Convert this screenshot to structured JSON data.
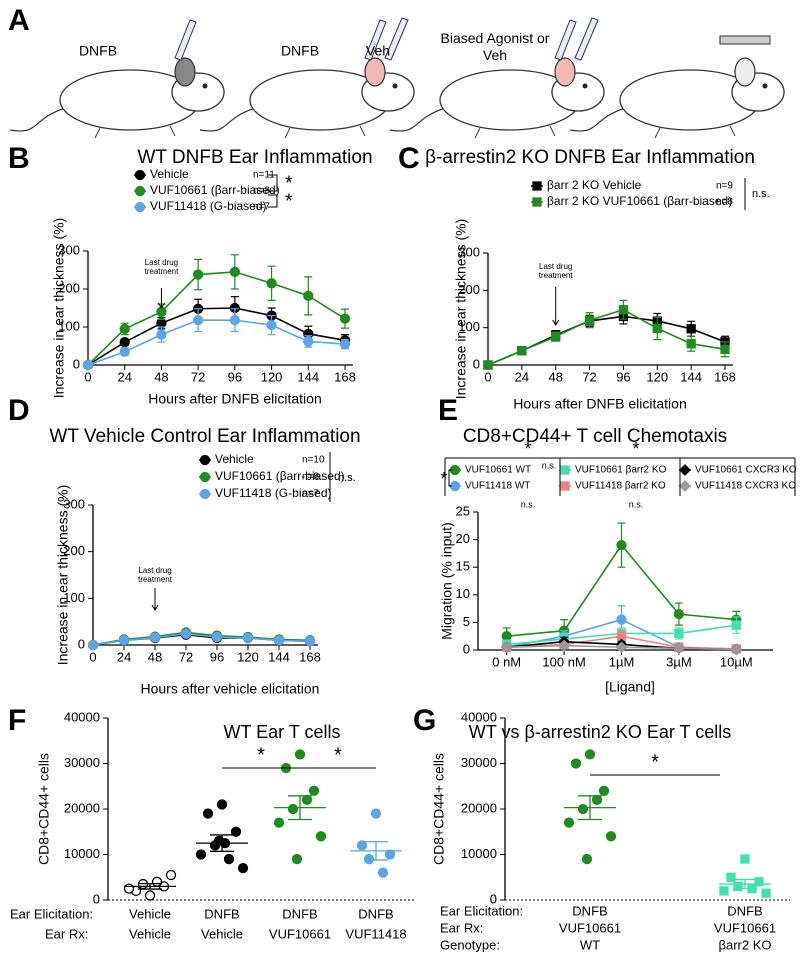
{
  "panel_a": {
    "panel": "A",
    "labels": [
      "DNFB",
      "DNFB",
      "Veh",
      "Biased Agonist or Veh"
    ]
  },
  "chart_data": [
    {
      "panel": "B",
      "type": "line",
      "title": "WT DNFB Ear Inflammation",
      "x_label": "Hours after DNFB elicitation",
      "y_label": "Increase in ear thickness (%)",
      "x": [
        0,
        24,
        48,
        72,
        96,
        120,
        144,
        168
      ],
      "xlim": [
        0,
        168
      ],
      "xticks": [
        0,
        24,
        48,
        72,
        96,
        120,
        144,
        168
      ],
      "ylim": [
        0,
        300
      ],
      "yticks": [
        0,
        100,
        200,
        300
      ],
      "annotation": "Last drug treatment",
      "significance": [
        "*",
        "*"
      ],
      "series": [
        {
          "name": "Vehicle",
          "n": "n=11",
          "color": "#000000",
          "marker": "circle",
          "values": [
            0,
            60,
            110,
            148,
            150,
            130,
            82,
            65
          ],
          "errors": [
            0,
            8,
            15,
            25,
            30,
            20,
            20,
            15
          ]
        },
        {
          "name": "VUF10661 (βarr-biased)",
          "n": "n=8",
          "color": "#1e8c1e",
          "marker": "circle",
          "values": [
            0,
            95,
            140,
            238,
            245,
            215,
            182,
            122
          ],
          "errors": [
            0,
            15,
            20,
            40,
            45,
            45,
            50,
            25
          ]
        },
        {
          "name": "VUF11418 (G-biased)",
          "n": "n=7",
          "color": "#5aa5e8",
          "marker": "circle",
          "values": [
            0,
            35,
            80,
            118,
            118,
            105,
            62,
            55
          ],
          "errors": [
            0,
            10,
            20,
            30,
            30,
            25,
            15,
            12
          ]
        }
      ]
    },
    {
      "panel": "C",
      "type": "line",
      "title": "β-arrestin2 KO DNFB Ear Inflammation",
      "x_label": "Hours after DNFB elicitation",
      "y_label": "Increase in ear thickness (%)",
      "x": [
        0,
        24,
        48,
        72,
        96,
        120,
        144,
        168
      ],
      "xlim": [
        0,
        168
      ],
      "xticks": [
        0,
        24,
        48,
        72,
        96,
        120,
        144,
        168
      ],
      "ylim": [
        0,
        300
      ],
      "yticks": [
        0,
        100,
        200,
        300
      ],
      "annotation": "Last drug treatment",
      "significance": [
        "n.s."
      ],
      "series": [
        {
          "name": "βarr 2 KO Vehicle",
          "n": "n=9",
          "color": "#000000",
          "marker": "square",
          "values": [
            0,
            38,
            80,
            118,
            130,
            118,
            97,
            62
          ],
          "errors": [
            0,
            5,
            12,
            15,
            20,
            20,
            20,
            15
          ]
        },
        {
          "name": "βarr 2 KO VUF10661 (βarr-biased)",
          "n": "n=8",
          "color": "#1e8c1e",
          "marker": "square",
          "values": [
            0,
            38,
            76,
            120,
            148,
            98,
            57,
            42
          ],
          "errors": [
            0,
            5,
            12,
            20,
            25,
            30,
            20,
            20
          ]
        }
      ]
    },
    {
      "panel": "D",
      "type": "line",
      "title": "WT Vehicle Control Ear Inflammation",
      "x_label": "Hours after vehicle elicitation",
      "y_label": "Increase in ear thickness (%)",
      "x": [
        0,
        24,
        48,
        72,
        96,
        120,
        144,
        168
      ],
      "xlim": [
        0,
        168
      ],
      "xticks": [
        0,
        24,
        48,
        72,
        96,
        120,
        144,
        168
      ],
      "ylim": [
        0,
        300
      ],
      "yticks": [
        0,
        100,
        200,
        300
      ],
      "annotation": "Last drug treatment",
      "significance": [
        "n.s."
      ],
      "series": [
        {
          "name": "Vehicle",
          "n": "n=10",
          "color": "#000000",
          "marker": "circle",
          "values": [
            0,
            10,
            15,
            22,
            15,
            15,
            10,
            8
          ],
          "errors": [
            2,
            3,
            4,
            5,
            4,
            4,
            3,
            3
          ]
        },
        {
          "name": "VUF10661 (βarr-biased)",
          "n": "n=8",
          "color": "#1e8c1e",
          "marker": "circle",
          "values": [
            0,
            12,
            18,
            27,
            20,
            17,
            12,
            10
          ],
          "errors": [
            2,
            3,
            4,
            5,
            4,
            4,
            3,
            3
          ]
        },
        {
          "name": "VUF11418 (G-biased)",
          "n": "n=7",
          "color": "#5aa5e8",
          "marker": "circle",
          "values": [
            0,
            10,
            16,
            24,
            17,
            15,
            10,
            8
          ],
          "errors": [
            2,
            3,
            4,
            5,
            4,
            4,
            3,
            3
          ]
        }
      ]
    },
    {
      "panel": "E",
      "type": "line",
      "title": "CD8+CD44+ T cell Chemotaxis",
      "x_label": "[Ligand]",
      "y_label": "Migration (% input)",
      "categories": [
        "0 nM",
        "100 nM",
        "1µM",
        "3µM",
        "10µM"
      ],
      "ylim": [
        0,
        25
      ],
      "yticks": [
        0,
        5,
        10,
        15,
        20,
        25
      ],
      "significance": [
        "*",
        "*",
        "n.s.",
        "*",
        "n.s.",
        "n.s."
      ],
      "series": [
        {
          "name": "VUF10661 WT",
          "color": "#1e8c1e",
          "marker": "circle",
          "values": [
            2.5,
            3.5,
            19,
            6.5,
            5.5
          ],
          "errors": [
            1.5,
            2,
            4,
            2,
            1.5
          ]
        },
        {
          "name": "VUF11418 WT",
          "color": "#5aa5e8",
          "marker": "circle",
          "values": [
            0.5,
            2.5,
            5.5,
            0.5,
            0.2
          ],
          "errors": [
            0.5,
            1,
            2.5,
            0.5,
            0.2
          ]
        },
        {
          "name": "VUF10661 βarr2 KO",
          "color": "#40e0b0",
          "marker": "square",
          "values": [
            1,
            2,
            3,
            3,
            4.5
          ],
          "errors": [
            0.8,
            1,
            1,
            1,
            1.5
          ]
        },
        {
          "name": "VUF11418 βarr2 KO",
          "color": "#f08080",
          "marker": "square",
          "values": [
            0.5,
            1,
            2.5,
            0.5,
            0.2
          ],
          "errors": [
            0.4,
            0.5,
            1,
            0.3,
            0.1
          ]
        },
        {
          "name": "VUF10661 CXCR3 KO",
          "color": "#000000",
          "marker": "diamond",
          "values": [
            0.5,
            1.5,
            1,
            0.3,
            0.1
          ],
          "errors": [
            0.3,
            0.8,
            0.5,
            0.2,
            0.1
          ]
        },
        {
          "name": "VUF11418 CXCR3 KO",
          "color": "#999999",
          "marker": "diamond",
          "values": [
            0.5,
            0.8,
            0.5,
            0.3,
            0.1
          ],
          "errors": [
            0.3,
            0.4,
            0.3,
            0.2,
            0.1
          ]
        }
      ]
    },
    {
      "panel": "F",
      "type": "dot",
      "title": "WT Ear T cells",
      "y_label": "CD8+CD44+ cells",
      "ylim": [
        0,
        40000
      ],
      "yticks": [
        0,
        10000,
        20000,
        30000,
        40000
      ],
      "row_labels": [
        "Ear Elicitation:",
        "Ear Rx:"
      ],
      "significance": [
        "*",
        "*"
      ],
      "groups": [
        {
          "elicitation": "Vehicle",
          "rx": "Vehicle",
          "color": "#ffffff",
          "edgecolor": "#000000",
          "marker": "circle",
          "values": [
            1000,
            2000,
            3000,
            3500,
            4000,
            2500,
            5500
          ],
          "mean": 3000,
          "sem": 600
        },
        {
          "elicitation": "DNFB",
          "rx": "Vehicle",
          "color": "#000000",
          "edgecolor": "#000000",
          "marker": "circle",
          "values": [
            21000,
            19000,
            15000,
            12000,
            9000,
            10000,
            7000,
            13000,
            12500
          ],
          "mean": 12500,
          "sem": 1800
        },
        {
          "elicitation": "DNFB",
          "rx": "VUF10661",
          "color": "#1e8c1e",
          "edgecolor": "#1e8c1e",
          "marker": "circle",
          "values": [
            32000,
            29000,
            24000,
            20000,
            22000,
            17000,
            14000,
            9000
          ],
          "mean": 20300,
          "sem": 2600
        },
        {
          "elicitation": "DNFB",
          "rx": "VUF11418",
          "color": "#5aa5e8",
          "edgecolor": "#5aa5e8",
          "marker": "circle",
          "values": [
            19000,
            12000,
            10000,
            9000,
            6000
          ],
          "mean": 10800,
          "sem": 2000
        }
      ]
    },
    {
      "panel": "G",
      "type": "dot",
      "title": "WT vs β-arrestin2 KO Ear T cells",
      "y_label": "CD8+CD44+ cells",
      "ylim": [
        0,
        40000
      ],
      "yticks": [
        0,
        10000,
        20000,
        30000,
        40000
      ],
      "row_labels": [
        "Ear Elicitation:",
        "Ear Rx:",
        "Genotype:"
      ],
      "significance": [
        "*"
      ],
      "groups": [
        {
          "elicitation": "DNFB",
          "rx": "VUF10661",
          "genotype": "WT",
          "color": "#1e8c1e",
          "edgecolor": "#1e8c1e",
          "marker": "circle",
          "values": [
            32000,
            30000,
            24000,
            20000,
            22000,
            17000,
            14000,
            9000
          ],
          "mean": 20300,
          "sem": 2600
        },
        {
          "elicitation": "DNFB",
          "rx": "VUF10661",
          "genotype": "βarr2 KO",
          "color": "#40e0b0",
          "edgecolor": "#40e0b0",
          "marker": "square",
          "values": [
            9000,
            5000,
            4000,
            3000,
            2500,
            2000,
            1500
          ],
          "mean": 3500,
          "sem": 1000
        }
      ]
    }
  ]
}
